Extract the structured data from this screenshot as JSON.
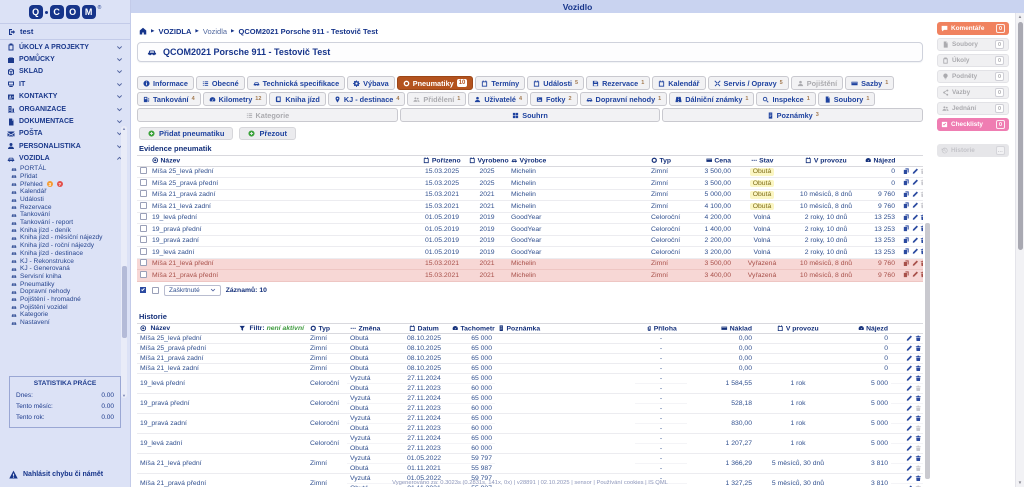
{
  "topbar": {
    "title": "Vozidlo"
  },
  "sidebar": {
    "logo_letters": [
      "Q",
      "C",
      "O",
      "M"
    ],
    "logo_reg": "®",
    "user": "test",
    "menu": [
      {
        "id": "ukoly-a-projekty",
        "icon": "clipboard",
        "label": "ÚKOLY A PROJEKTY"
      },
      {
        "id": "pomucky",
        "icon": "briefcase",
        "label": "POMŮCKY"
      },
      {
        "id": "sklad",
        "icon": "box",
        "label": "SKLAD"
      },
      {
        "id": "it",
        "icon": "computer",
        "label": "IT"
      },
      {
        "id": "kontakty",
        "icon": "contact",
        "label": "KONTAKTY"
      },
      {
        "id": "organizace",
        "icon": "building",
        "label": "ORGANIZACE"
      },
      {
        "id": "dokumentace",
        "icon": "document",
        "label": "DOKUMENTACE"
      },
      {
        "id": "posta",
        "icon": "mail",
        "label": "POŠTA"
      },
      {
        "id": "personalistika",
        "icon": "person",
        "label": "PERSONALISTIKA"
      },
      {
        "id": "vozidla",
        "icon": "car",
        "label": "VOZIDLA",
        "expanded": true
      }
    ],
    "submenu": [
      {
        "label": "PORTÁL"
      },
      {
        "label": "Přidat"
      },
      {
        "label": "Přehled",
        "badges": [
          {
            "text": "3",
            "color": "#f59b31"
          },
          {
            "text": "?",
            "color": "#e2504c"
          }
        ]
      },
      {
        "label": "Kalendář"
      },
      {
        "label": "Události"
      },
      {
        "label": "Rezervace"
      },
      {
        "label": "Tankování"
      },
      {
        "label": "Tankování - report"
      },
      {
        "label": "Kniha jízd - deník"
      },
      {
        "label": "Kniha jízd - měsíční nájezdy"
      },
      {
        "label": "Kniha jízd - roční nájezdy"
      },
      {
        "label": "Kniha jízd - destinace"
      },
      {
        "label": "KJ - Rekonstrukce"
      },
      {
        "label": "KJ - Generovaná"
      },
      {
        "label": "Servisní kniha"
      },
      {
        "label": "Pneumatiky"
      },
      {
        "label": "Dopravní nehody"
      },
      {
        "label": "Pojištění - hromadné"
      },
      {
        "label": "Pojištění vozidel"
      },
      {
        "label": "Kategorie"
      },
      {
        "label": "Nastavení"
      }
    ],
    "stats": {
      "title": "STATISTIKA PRÁCE",
      "rows": [
        {
          "label": "Dnes:",
          "value": "0.00"
        },
        {
          "label": "Tento měsíc:",
          "value": "0.00"
        },
        {
          "label": "Tento rok:",
          "value": "0.00"
        }
      ]
    },
    "report_label": "Nahlásit chybu či námět"
  },
  "breadcrumb": [
    "VOZIDLA",
    "Vozidla",
    "QCOM2021 Porsche 911 - Testovič Test"
  ],
  "page_title": "QCOM2021 Porsche 911 - Testovič Test",
  "tabs": {
    "row1": [
      {
        "icon": "info",
        "label": "Informace"
      },
      {
        "icon": "list",
        "label": "Obecné"
      },
      {
        "icon": "car",
        "label": "Technická specifikace"
      },
      {
        "icon": "gears",
        "label": "Výbava"
      },
      {
        "icon": "tire",
        "label": "Pneumatiky",
        "count": "10",
        "active": true
      },
      {
        "icon": "calendar",
        "label": "Termíny"
      },
      {
        "icon": "calendar",
        "label": "Události",
        "count": "5"
      },
      {
        "icon": "save",
        "label": "Rezervace",
        "count": "1"
      },
      {
        "icon": "calendar",
        "label": "Kalendář"
      },
      {
        "icon": "wrench",
        "label": "Servis / Opravy",
        "count": "5"
      },
      {
        "icon": "person",
        "label": "Pojištění",
        "disabled": true
      },
      {
        "icon": "card",
        "label": "Sazby",
        "count": "1"
      }
    ],
    "row2": [
      {
        "icon": "fuel",
        "label": "Tankování",
        "count": "4"
      },
      {
        "icon": "speedo",
        "label": "Kilometry",
        "count": "12"
      },
      {
        "icon": "book",
        "label": "Kniha jízd"
      },
      {
        "icon": "pin",
        "label": "KJ - destinace",
        "count": "4"
      },
      {
        "icon": "users",
        "label": "Přidělení",
        "count": "1",
        "disabled": true
      },
      {
        "icon": "person",
        "label": "Uživatelé",
        "count": "4"
      },
      {
        "icon": "photo",
        "label": "Fotky",
        "count": "2"
      },
      {
        "icon": "car",
        "label": "Dopravní nehody",
        "count": "1"
      },
      {
        "icon": "road",
        "label": "Dálniční známky",
        "count": "1"
      },
      {
        "icon": "search",
        "label": "Inspekce",
        "count": "1"
      },
      {
        "icon": "file",
        "label": "Soubory",
        "count": "1"
      }
    ],
    "row3": [
      {
        "icon": "list",
        "label": "Kategorie",
        "disabled": true
      },
      {
        "icon": "grid",
        "label": "Souhrn"
      },
      {
        "icon": "note",
        "label": "Poznámky",
        "count": "3"
      }
    ]
  },
  "toolbar": {
    "buttons": [
      {
        "label": "Přidat pneumatiku"
      },
      {
        "label": "Přezout"
      }
    ]
  },
  "evidence": {
    "title": "Evidence pneumatik",
    "columns": [
      {
        "icon": "target",
        "label": "Název",
        "align": "l"
      },
      {
        "icon": "calendar",
        "label": "Pořízeno",
        "align": "c"
      },
      {
        "icon": "calendar",
        "label": "Vyrobeno",
        "align": "c"
      },
      {
        "icon": "car",
        "label": "Výrobce",
        "align": "l"
      },
      {
        "icon": "tire",
        "label": "Typ",
        "align": "l"
      },
      {
        "icon": "card",
        "label": "Cena",
        "align": "r"
      },
      {
        "icon": "dashes",
        "label": "Stav",
        "align": "c"
      },
      {
        "icon": "calendar",
        "label": "V provozu",
        "align": "c"
      },
      {
        "icon": "speedo",
        "label": "Nájezd",
        "align": "r"
      }
    ],
    "rows": [
      {
        "name": "Míša 25_levá přední",
        "acquired": "15.03.2025",
        "made": "2025",
        "maker": "Michelin",
        "type": "Zimní",
        "price": "3 500,00",
        "status": "Obutá",
        "hl": true,
        "service": "",
        "mileage": "0",
        "removed": false,
        "delDisabled": true
      },
      {
        "name": "Míša 25_pravá přední",
        "acquired": "15.03.2025",
        "made": "2025",
        "maker": "Michelin",
        "type": "Zimní",
        "price": "3 500,00",
        "status": "Obutá",
        "hl": true,
        "service": "",
        "mileage": "0",
        "removed": false,
        "delDisabled": true
      },
      {
        "name": "Míša 21_pravá zadní",
        "acquired": "15.03.2021",
        "made": "2021",
        "maker": "Michelin",
        "type": "Zimní",
        "price": "5 000,00",
        "status": "Obutá",
        "hl": true,
        "service": "10 měsíců, 8 dnů",
        "mileage": "9 760",
        "removed": false,
        "delDisabled": true
      },
      {
        "name": "Míša 21_levá zadní",
        "acquired": "15.03.2021",
        "made": "2021",
        "maker": "Michelin",
        "type": "Zimní",
        "price": "4 100,00",
        "status": "Obutá",
        "hl": true,
        "service": "10 měsíců, 8 dnů",
        "mileage": "9 760",
        "removed": false,
        "delDisabled": true
      },
      {
        "name": "19_levá přední",
        "acquired": "01.05.2019",
        "made": "2019",
        "maker": "GoodYear",
        "type": "Celoroční",
        "price": "4 200,00",
        "status": "Volná",
        "hl": false,
        "service": "2 roky, 10 dnů",
        "mileage": "13 253",
        "removed": false,
        "delDisabled": false
      },
      {
        "name": "19_pravá přední",
        "acquired": "01.05.2019",
        "made": "2019",
        "maker": "GoodYear",
        "type": "Celoroční",
        "price": "1 400,00",
        "status": "Volná",
        "hl": false,
        "service": "2 roky, 10 dnů",
        "mileage": "13 253",
        "removed": false,
        "delDisabled": false
      },
      {
        "name": "19_pravá zadní",
        "acquired": "01.05.2019",
        "made": "2019",
        "maker": "GoodYear",
        "type": "Celoroční",
        "price": "2 200,00",
        "status": "Volná",
        "hl": false,
        "service": "2 roky, 10 dnů",
        "mileage": "13 253",
        "removed": false,
        "delDisabled": false
      },
      {
        "name": "19_levá zadní",
        "acquired": "01.05.2019",
        "made": "2019",
        "maker": "GoodYear",
        "type": "Celoroční",
        "price": "3 200,00",
        "status": "Volná",
        "hl": false,
        "service": "2 roky, 10 dnů",
        "mileage": "13 253",
        "removed": false,
        "delDisabled": false
      },
      {
        "name": "Míša 21_levá přední",
        "acquired": "15.03.2021",
        "made": "2021",
        "maker": "Michelin",
        "type": "Zimní",
        "price": "3 500,00",
        "status": "Vyřazená",
        "hl": false,
        "service": "10 měsíců, 8 dnů",
        "mileage": "9 760",
        "removed": true,
        "delDisabled": false
      },
      {
        "name": "Míša 21_pravá přední",
        "acquired": "15.03.2021",
        "made": "2021",
        "maker": "Michelin",
        "type": "Zimní",
        "price": "3 400,00",
        "status": "Vyřazená",
        "hl": false,
        "service": "10 měsíců, 8 dnů",
        "mileage": "9 760",
        "removed": true,
        "delDisabled": false
      }
    ],
    "footer": {
      "select_value": "Zaškrtnuté",
      "records_label": "Záznamů:",
      "records_value": "10"
    }
  },
  "history": {
    "title": "Historie",
    "filter": {
      "label": "Filtr:",
      "state": "není aktivní"
    },
    "columns": [
      {
        "icon": "target",
        "label": "Název"
      },
      {
        "icon": "tire",
        "label": "Typ",
        "align": "l"
      },
      {
        "icon": "dashes",
        "label": "Změna",
        "align": "l"
      },
      {
        "icon": "calendar",
        "label": "Datum",
        "align": "c"
      },
      {
        "icon": "speedo",
        "label": "Tachometr",
        "align": "r"
      },
      {
        "icon": "note",
        "label": "Poznámka",
        "align": "l"
      },
      {
        "icon": "clip",
        "label": "Příloha",
        "align": "c"
      },
      {
        "icon": "card",
        "label": "Náklad",
        "align": "r"
      },
      {
        "icon": "calendar",
        "label": "V provozu",
        "align": "c"
      },
      {
        "icon": "speedo",
        "label": "Nájezd",
        "align": "r"
      }
    ],
    "rows": [
      {
        "name": "Míša 25_levá přední",
        "type": "Zimní",
        "entries": [
          {
            "change": "Obutá",
            "date": "08.10.2025",
            "odo": "65 000",
            "attach": "-"
          }
        ],
        "note": "",
        "cost": "0,00",
        "service": "",
        "mileage": "0"
      },
      {
        "name": "Míša 25_pravá přední",
        "type": "Zimní",
        "entries": [
          {
            "change": "Obutá",
            "date": "08.10.2025",
            "odo": "65 000",
            "attach": "-"
          }
        ],
        "note": "",
        "cost": "0,00",
        "service": "",
        "mileage": "0"
      },
      {
        "name": "Míša 21_pravá zadní",
        "type": "Zimní",
        "entries": [
          {
            "change": "Obutá",
            "date": "08.10.2025",
            "odo": "65 000",
            "attach": "-"
          }
        ],
        "note": "",
        "cost": "0,00",
        "service": "",
        "mileage": "0"
      },
      {
        "name": "Míša 21_levá zadní",
        "type": "Zimní",
        "entries": [
          {
            "change": "Obutá",
            "date": "08.10.2025",
            "odo": "65 000",
            "attach": "-"
          }
        ],
        "note": "",
        "cost": "0,00",
        "service": "",
        "mileage": "0"
      },
      {
        "name": "19_levá přední",
        "type": "Celoroční",
        "entries": [
          {
            "change": "Vyzutá",
            "date": "27.11.2024",
            "odo": "65 000",
            "attach": "-"
          },
          {
            "change": "Obutá",
            "date": "27.11.2023",
            "odo": "60 000",
            "attach": "-"
          }
        ],
        "note": "",
        "cost": "1 584,55",
        "service": "1 rok",
        "mileage": "5 000"
      },
      {
        "name": "19_pravá přední",
        "type": "Celoroční",
        "entries": [
          {
            "change": "Vyzutá",
            "date": "27.11.2024",
            "odo": "65 000",
            "attach": "-"
          },
          {
            "change": "Obutá",
            "date": "27.11.2023",
            "odo": "60 000",
            "attach": "-"
          }
        ],
        "note": "",
        "cost": "528,18",
        "service": "1 rok",
        "mileage": "5 000"
      },
      {
        "name": "19_pravá zadní",
        "type": "Celoroční",
        "entries": [
          {
            "change": "Vyzutá",
            "date": "27.11.2024",
            "odo": "65 000",
            "attach": "-"
          },
          {
            "change": "Obutá",
            "date": "27.11.2023",
            "odo": "60 000",
            "attach": "-"
          }
        ],
        "note": "",
        "cost": "830,00",
        "service": "1 rok",
        "mileage": "5 000"
      },
      {
        "name": "19_levá zadní",
        "type": "Celoroční",
        "entries": [
          {
            "change": "Vyzutá",
            "date": "27.11.2024",
            "odo": "65 000",
            "attach": "-"
          },
          {
            "change": "Obutá",
            "date": "27.11.2023",
            "odo": "60 000",
            "attach": "-"
          }
        ],
        "note": "",
        "cost": "1 207,27",
        "service": "1 rok",
        "mileage": "5 000"
      },
      {
        "name": "Míša 21_levá přední",
        "type": "Zimní",
        "entries": [
          {
            "change": "Vyzutá",
            "date": "01.05.2022",
            "odo": "59 797",
            "attach": "-"
          },
          {
            "change": "Obutá",
            "date": "01.11.2021",
            "odo": "55 987",
            "attach": "-"
          }
        ],
        "note": "",
        "cost": "1 366,29",
        "service": "5 měsíců, 30 dnů",
        "mileage": "3 810"
      },
      {
        "name": "Míša 21_pravá přední",
        "type": "Zimní",
        "entries": [
          {
            "change": "Vyzutá",
            "date": "01.05.2022",
            "odo": "59 797",
            "attach": "-"
          },
          {
            "change": "Obutá",
            "date": "01.11.2021",
            "odo": "55 987",
            "attach": "-"
          }
        ],
        "note": "",
        "cost": "1 327,25",
        "service": "5 měsíců, 30 dnů",
        "mileage": "3 810"
      }
    ]
  },
  "rail": {
    "buttons": [
      {
        "icon": "comment",
        "label": "Komentáře",
        "count": "0",
        "variant": "orange"
      },
      {
        "icon": "file",
        "label": "Soubory",
        "count": "0",
        "variant": "grey"
      },
      {
        "icon": "clipboard",
        "label": "Úkoly",
        "count": "0",
        "variant": "grey"
      },
      {
        "icon": "bulb",
        "label": "Podněty",
        "count": "0",
        "variant": "grey"
      },
      {
        "icon": "share",
        "label": "Vazby",
        "count": "0",
        "variant": "grey"
      },
      {
        "icon": "users",
        "label": "Jednání",
        "count": "0",
        "variant": "grey"
      },
      {
        "icon": "checkbox",
        "label": "Checklisty",
        "count": "0",
        "variant": "pink"
      },
      {
        "icon": "history",
        "label": "Historie",
        "count": "…",
        "variant": "muted"
      }
    ]
  },
  "statusbar": {
    "text": "Vygenerováno za: 0.3023s (0.2831s, 141x, 0x) | v28891 | 02.10.2025 | sensor | Používání cookies | IS QML"
  }
}
